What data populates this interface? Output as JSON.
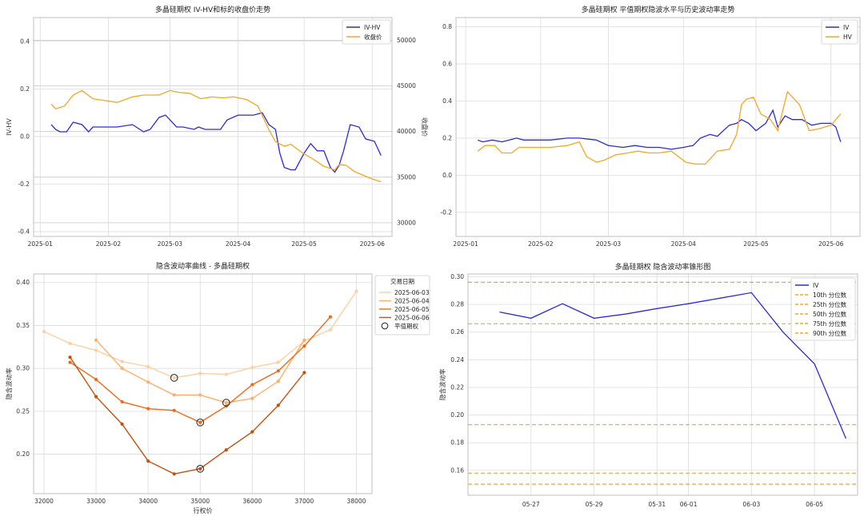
{
  "chart_data": [
    {
      "type": "line",
      "title": "多晶硅期权 IV-HV和标的收盘价走势",
      "ylabel": "IV-HV",
      "ylabel2": "收盘价",
      "ylim": [
        -0.42,
        0.5
      ],
      "ylim2": [
        28500,
        52500
      ],
      "yticks": [
        "-0.4",
        "-0.2",
        "0.0",
        "0.2",
        "0.4"
      ],
      "yticks2": [
        "30000",
        "35000",
        "40000",
        "45000",
        "50000"
      ],
      "x_ticks": [
        "2025-01",
        "2025-02",
        "2025-03",
        "2025-04",
        "2025-05",
        "2025-06"
      ],
      "hlines_right_axis": [
        30000,
        35000,
        40000,
        45000,
        50000
      ],
      "series": [
        {
          "name": "IV-HV",
          "axis": "left",
          "color": "#2b2bd9",
          "x": [
            "2025-01-06",
            "2025-01-08",
            "2025-01-10",
            "2025-01-13",
            "2025-01-16",
            "2025-01-20",
            "2025-01-23",
            "2025-01-25",
            "2025-02-05",
            "2025-02-12",
            "2025-02-17",
            "2025-02-20",
            "2025-02-24",
            "2025-02-27",
            "2025-03-04",
            "2025-03-07",
            "2025-03-12",
            "2025-03-14",
            "2025-03-17",
            "2025-03-20",
            "2025-03-24",
            "2025-03-27",
            "2025-04-01",
            "2025-04-03",
            "2025-04-08",
            "2025-04-12",
            "2025-04-15",
            "2025-04-18",
            "2025-04-20",
            "2025-04-22",
            "2025-04-25",
            "2025-04-27",
            "2025-05-01",
            "2025-05-04",
            "2025-05-07",
            "2025-05-10",
            "2025-05-13",
            "2025-05-15",
            "2025-05-17",
            "2025-05-19",
            "2025-05-22",
            "2025-05-26",
            "2025-05-29",
            "2025-06-02",
            "2025-06-05"
          ],
          "values": [
            0.05,
            0.03,
            0.02,
            0.02,
            0.06,
            0.05,
            0.02,
            0.04,
            0.04,
            0.05,
            0.02,
            0.03,
            0.08,
            0.09,
            0.04,
            0.04,
            0.03,
            0.04,
            0.03,
            0.03,
            0.03,
            0.07,
            0.09,
            0.09,
            0.09,
            0.1,
            0.05,
            0.03,
            -0.07,
            -0.13,
            -0.14,
            -0.14,
            -0.07,
            -0.03,
            -0.06,
            -0.06,
            -0.13,
            -0.15,
            -0.12,
            -0.06,
            0.05,
            0.04,
            -0.01,
            -0.02,
            -0.08
          ]
        },
        {
          "name": "收盘价",
          "axis": "right",
          "color": "#f5a623",
          "x": [
            "2025-01-06",
            "2025-01-08",
            "2025-01-12",
            "2025-01-16",
            "2025-01-20",
            "2025-01-25",
            "2025-02-05",
            "2025-02-12",
            "2025-02-17",
            "2025-02-24",
            "2025-03-01",
            "2025-03-05",
            "2025-03-10",
            "2025-03-15",
            "2025-03-20",
            "2025-03-25",
            "2025-03-30",
            "2025-04-05",
            "2025-04-10",
            "2025-04-15",
            "2025-04-18",
            "2025-04-22",
            "2025-04-25",
            "2025-04-30",
            "2025-05-05",
            "2025-05-10",
            "2025-05-15",
            "2025-05-17",
            "2025-05-20",
            "2025-05-24",
            "2025-05-28",
            "2025-06-01",
            "2025-06-05"
          ],
          "values": [
            43000,
            42500,
            42800,
            44000,
            44500,
            43600,
            43200,
            43800,
            44000,
            44000,
            44500,
            44300,
            44200,
            43600,
            43800,
            43700,
            43800,
            43500,
            42800,
            40200,
            38900,
            38400,
            38600,
            37700,
            37000,
            36200,
            35800,
            36400,
            36300,
            35600,
            35200,
            34800,
            34500
          ]
        }
      ]
    },
    {
      "type": "line",
      "title": "多晶硅期权 平值期权隐波水平与历史波动率走势",
      "ylim": [
        -0.33,
        0.85
      ],
      "yticks": [
        "-0.2",
        "0.0",
        "0.2",
        "0.4",
        "0.6",
        "0.8"
      ],
      "x_ticks": [
        "2025-01",
        "2025-02",
        "2025-03",
        "2025-04",
        "2025-05",
        "2025-06"
      ],
      "series": [
        {
          "name": "IV",
          "color": "#2b2bd9",
          "x": [
            "2025-01-06",
            "2025-01-08",
            "2025-01-12",
            "2025-01-16",
            "2025-01-22",
            "2025-01-25",
            "2025-02-05",
            "2025-02-12",
            "2025-02-17",
            "2025-02-24",
            "2025-03-01",
            "2025-03-07",
            "2025-03-12",
            "2025-03-17",
            "2025-03-22",
            "2025-03-27",
            "2025-04-01",
            "2025-04-05",
            "2025-04-08",
            "2025-04-12",
            "2025-04-15",
            "2025-04-20",
            "2025-04-23",
            "2025-04-25",
            "2025-04-28",
            "2025-05-01",
            "2025-05-05",
            "2025-05-08",
            "2025-05-10",
            "2025-05-13",
            "2025-05-16",
            "2025-05-20",
            "2025-05-24",
            "2025-05-28",
            "2025-06-01",
            "2025-06-03",
            "2025-06-05"
          ],
          "values": [
            0.19,
            0.18,
            0.19,
            0.18,
            0.2,
            0.19,
            0.19,
            0.2,
            0.2,
            0.19,
            0.16,
            0.15,
            0.16,
            0.15,
            0.15,
            0.14,
            0.15,
            0.16,
            0.2,
            0.22,
            0.21,
            0.27,
            0.28,
            0.3,
            0.28,
            0.24,
            0.28,
            0.35,
            0.26,
            0.32,
            0.3,
            0.3,
            0.27,
            0.28,
            0.28,
            0.26,
            0.18
          ]
        },
        {
          "name": "HV",
          "color": "#f5a623",
          "x": [
            "2025-01-06",
            "2025-01-09",
            "2025-01-13",
            "2025-01-16",
            "2025-01-20",
            "2025-01-23",
            "2025-02-05",
            "2025-02-12",
            "2025-02-17",
            "2025-02-20",
            "2025-02-24",
            "2025-02-27",
            "2025-03-04",
            "2025-03-09",
            "2025-03-13",
            "2025-03-18",
            "2025-03-22",
            "2025-03-27",
            "2025-04-02",
            "2025-04-06",
            "2025-04-10",
            "2025-04-15",
            "2025-04-20",
            "2025-04-23",
            "2025-04-25",
            "2025-04-27",
            "2025-04-30",
            "2025-05-03",
            "2025-05-07",
            "2025-05-10",
            "2025-05-14",
            "2025-05-19",
            "2025-05-23",
            "2025-05-27",
            "2025-06-01",
            "2025-06-05"
          ],
          "values": [
            0.13,
            0.16,
            0.16,
            0.12,
            0.12,
            0.15,
            0.15,
            0.16,
            0.18,
            0.1,
            0.07,
            0.08,
            0.11,
            0.12,
            0.13,
            0.12,
            0.12,
            0.13,
            0.07,
            0.06,
            0.06,
            0.13,
            0.14,
            0.22,
            0.38,
            0.41,
            0.42,
            0.33,
            0.3,
            0.24,
            0.45,
            0.38,
            0.24,
            0.25,
            0.27,
            0.33
          ]
        }
      ]
    },
    {
      "type": "line",
      "title": "隐含波动率曲线 - 多晶硅期权",
      "xlabel": "行权价",
      "ylabel": "隐含波动率",
      "xlim": [
        31800,
        38300
      ],
      "ylim": [
        0.154,
        0.41
      ],
      "x_ticks": [
        "32000",
        "33000",
        "34000",
        "35000",
        "36000",
        "37000",
        "38000"
      ],
      "yticks": [
        "0.20",
        "0.25",
        "0.30",
        "0.35",
        "0.40"
      ],
      "legend_title": "交易日期",
      "atm_label": "平值期权",
      "series": [
        {
          "name": "2025-06-03",
          "color": "#fdd0a2",
          "x": [
            32000,
            32500,
            33000,
            33500,
            34000,
            34500,
            35000,
            35500,
            36000,
            36500,
            37000,
            37500,
            38000
          ],
          "values": [
            0.343,
            0.329,
            0.321,
            0.308,
            0.302,
            0.289,
            0.294,
            0.293,
            0.301,
            0.307,
            0.332,
            0.345,
            0.39
          ],
          "atm": [
            34500,
            0.289
          ]
        },
        {
          "name": "2025-06-04",
          "color": "#fdae6b",
          "x": [
            33000,
            33500,
            34000,
            34500,
            35000,
            35500,
            36000,
            36500,
            37000
          ],
          "values": [
            0.333,
            0.3,
            0.284,
            0.269,
            0.269,
            0.26,
            0.265,
            0.285,
            0.333
          ],
          "atm": [
            35500,
            0.26
          ]
        },
        {
          "name": "2025-06-05",
          "color": "#f16913",
          "x": [
            32500,
            33000,
            33500,
            34000,
            34500,
            35000,
            35500,
            36000,
            36500,
            37000,
            37500
          ],
          "values": [
            0.307,
            0.287,
            0.261,
            0.253,
            0.251,
            0.237,
            0.256,
            0.281,
            0.297,
            0.326,
            0.36
          ],
          "atm": [
            35000,
            0.237
          ]
        },
        {
          "name": "2025-06-06",
          "color": "#c4500f",
          "x": [
            32500,
            33000,
            33500,
            34000,
            34500,
            35000,
            35500,
            36000,
            36500,
            37000
          ],
          "values": [
            0.313,
            0.267,
            0.235,
            0.192,
            0.177,
            0.183,
            0.205,
            0.226,
            0.257,
            0.295
          ],
          "atm": [
            35000,
            0.183
          ]
        }
      ]
    },
    {
      "type": "line",
      "title": "多晶硅期权 隐含波动率锥形图",
      "ylabel": "隐含波动率",
      "ylim": [
        0.142,
        0.302
      ],
      "yticks": [
        "0.16",
        "0.18",
        "0.20",
        "0.22",
        "0.24",
        "0.26",
        "0.28",
        "0.30"
      ],
      "x_ticks": [
        "05-27",
        "05-29",
        "05-31",
        "06-01",
        "06-03",
        "06-05"
      ],
      "series": [
        {
          "name": "IV",
          "color": "#2b2bd9",
          "x": [
            "2025-05-26",
            "2025-05-27",
            "2025-05-28",
            "2025-05-29",
            "2025-05-30",
            "2025-05-31",
            "2025-06-01",
            "2025-06-02",
            "2025-06-03",
            "2025-06-04",
            "2025-06-05",
            "2025-06-06"
          ],
          "values": [
            0.2745,
            0.27,
            0.2805,
            0.27,
            0.273,
            0.277,
            0.2805,
            0.2845,
            0.2885,
            0.26,
            0.237,
            0.183
          ]
        }
      ],
      "percentiles": [
        {
          "name": "10th 分位数",
          "value": 0.15
        },
        {
          "name": "25th 分位数",
          "value": 0.158
        },
        {
          "name": "50th 分位数",
          "value": 0.193
        },
        {
          "name": "75th 分位数",
          "value": 0.266
        },
        {
          "name": "90th 分位数",
          "value": 0.296
        }
      ],
      "percentile_color": "#f5a623"
    }
  ]
}
